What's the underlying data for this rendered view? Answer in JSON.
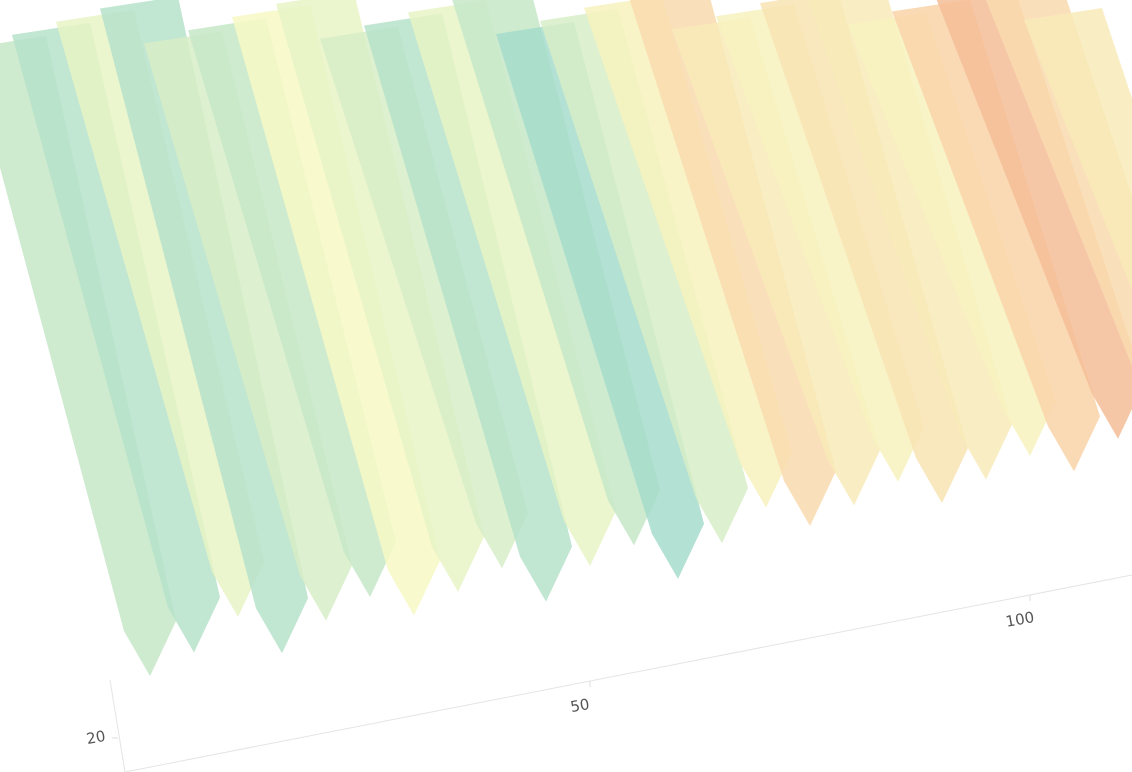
{
  "chart_data": {
    "type": "surface",
    "x": [
      0,
      5,
      10,
      15,
      20,
      25,
      30,
      35,
      40,
      45,
      50,
      55,
      60,
      65,
      70,
      75,
      80,
      85,
      90,
      95,
      100,
      105,
      110,
      115,
      120
    ],
    "z": [
      0.35,
      0.3,
      0.45,
      0.3,
      0.4,
      0.35,
      0.5,
      0.45,
      0.4,
      0.3,
      0.45,
      0.35,
      0.25,
      0.4,
      0.55,
      0.7,
      0.6,
      0.55,
      0.65,
      0.6,
      0.55,
      0.75,
      0.85,
      0.7,
      0.6
    ],
    "zlim": [
      0,
      1
    ],
    "colorscale": [
      "#8fb3d9",
      "#a6dccb",
      "#f7f9c4",
      "#f9d4a8",
      "#f09a7a"
    ],
    "xlim": [
      0,
      120
    ],
    "xticks": [
      50,
      100
    ],
    "yticks": [
      20
    ]
  }
}
